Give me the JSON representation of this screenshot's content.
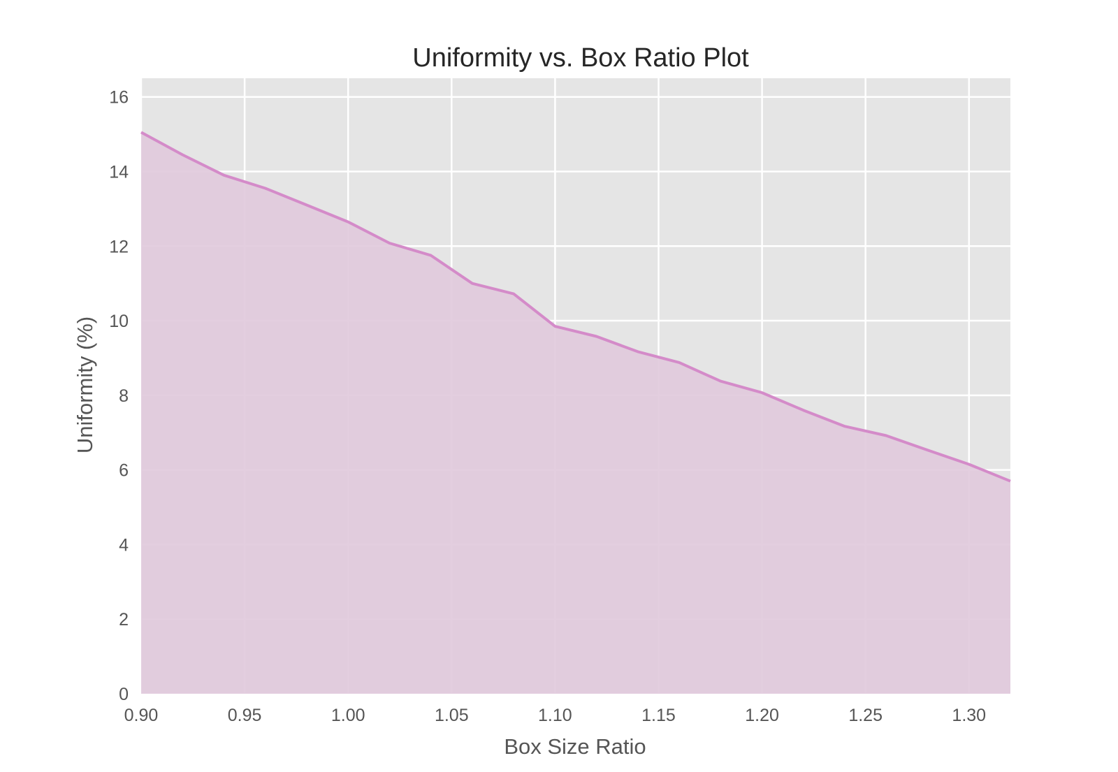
{
  "chart_data": {
    "type": "area",
    "title": "Uniformity vs. Box Ratio Plot",
    "xlabel": "Box Size Ratio",
    "ylabel": "Uniformity (%)",
    "xlim": [
      0.9,
      1.32
    ],
    "ylim": [
      0,
      16.5
    ],
    "x_ticks": [
      "0.90",
      "0.95",
      "1.00",
      "1.05",
      "1.10",
      "1.15",
      "1.20",
      "1.25",
      "1.30"
    ],
    "y_ticks": [
      "0",
      "2",
      "4",
      "6",
      "8",
      "10",
      "12",
      "14",
      "16"
    ],
    "grid": true,
    "colors": {
      "plot_background": "#e5e5e5",
      "grid": "#ffffff",
      "line": "#d48bc9",
      "fill": "#e0c9dc"
    },
    "series": [
      {
        "x": [
          0.9,
          0.92,
          0.94,
          0.96,
          0.98,
          1.0,
          1.02,
          1.04,
          1.06,
          1.08,
          1.1,
          1.12,
          1.14,
          1.16,
          1.18,
          1.2,
          1.22,
          1.24,
          1.26,
          1.28,
          1.3,
          1.32
        ],
        "values": [
          15.05,
          14.45,
          13.9,
          13.55,
          13.1,
          12.65,
          12.08,
          11.75,
          11.0,
          10.72,
          9.85,
          9.58,
          9.17,
          8.88,
          8.38,
          8.07,
          7.6,
          7.17,
          6.92,
          6.53,
          6.15,
          5.7
        ]
      }
    ]
  }
}
